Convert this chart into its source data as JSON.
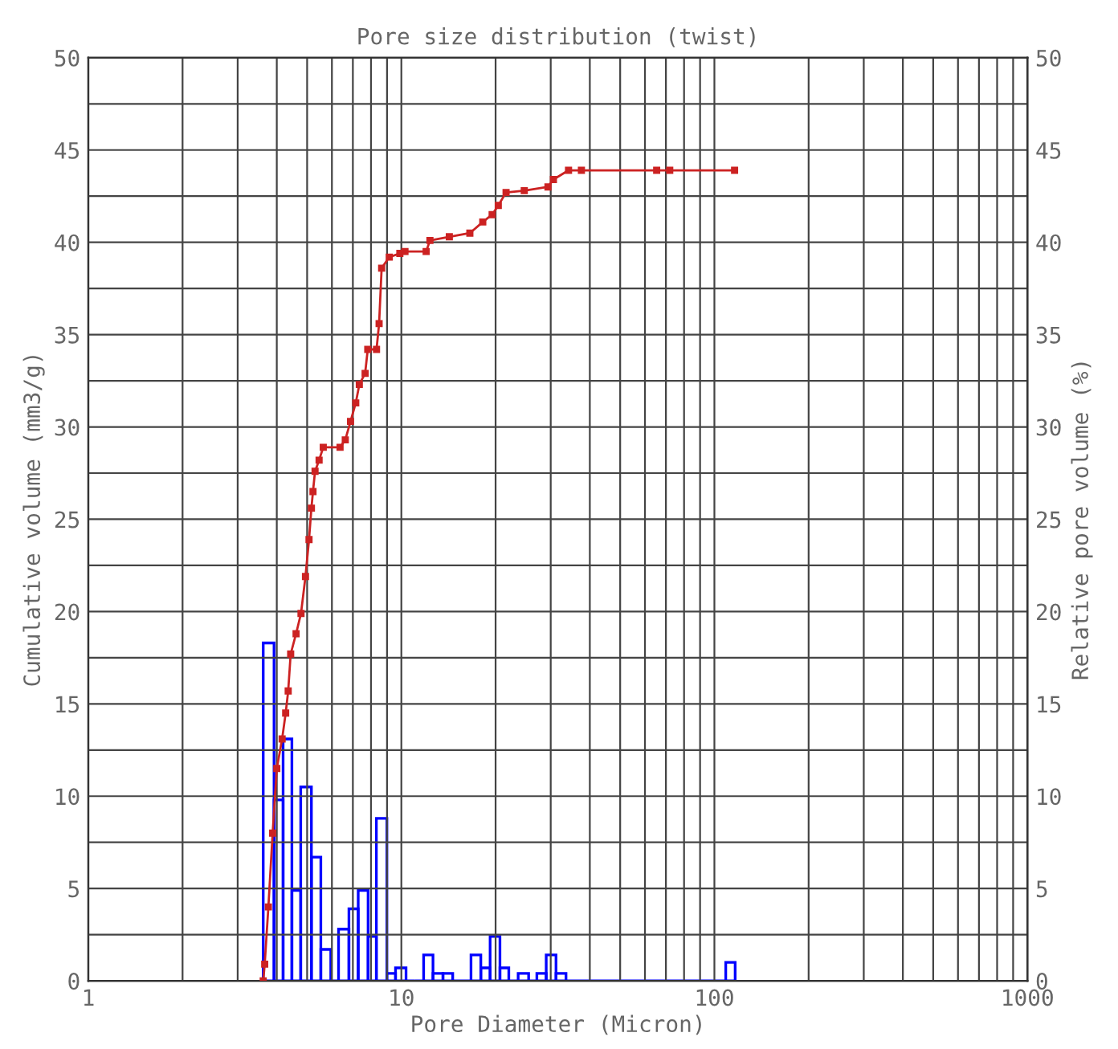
{
  "chart_data": {
    "type": "line",
    "title": "Pore size distribution (twist)",
    "xlabel": "Pore Diameter (Micron)",
    "ylabel": "Cumulative volume (mm3/g)",
    "y2label": "Relative pore volume (%)",
    "log": "x",
    "xlim": [
      1,
      1000
    ],
    "xticks": [
      1,
      10,
      100,
      1000
    ],
    "ylim": [
      0,
      50
    ],
    "yticks": [
      0,
      5,
      10,
      15,
      20,
      25,
      30,
      35,
      40,
      45,
      50
    ],
    "y2lim": [
      0,
      50
    ],
    "y2ticks": [
      0,
      5,
      10,
      15,
      20,
      25,
      30,
      35,
      40,
      45,
      50
    ],
    "grid": true,
    "marker": "square",
    "line_style": "solid",
    "series": [
      {
        "color": "#cc2222",
        "x": [
          3.62,
          3.66,
          3.76,
          3.88,
          4.0,
          4.16,
          4.27,
          4.35,
          4.43,
          4.61,
          4.78,
          4.94,
          5.07,
          5.16,
          5.22,
          5.3,
          5.46,
          5.63,
          6.37,
          6.62,
          6.88,
          7.15,
          7.34,
          7.66,
          7.81,
          8.33,
          8.49,
          8.65,
          9.15,
          9.89,
          10.27,
          12.0,
          12.34,
          14.23,
          16.55,
          18.2,
          19.5,
          20.4,
          21.6,
          24.7,
          29.4,
          30.6,
          34.2,
          37.6,
          65.4,
          72.0,
          116.0
        ],
        "values": [
          0,
          0.9,
          4.0,
          8.0,
          11.5,
          13.1,
          14.5,
          15.7,
          17.7,
          18.8,
          19.9,
          21.9,
          23.9,
          25.6,
          26.5,
          27.6,
          28.2,
          28.9,
          28.9,
          29.3,
          30.3,
          31.3,
          32.3,
          32.9,
          34.2,
          34.2,
          35.6,
          38.6,
          39.2,
          39.4,
          39.5,
          39.5,
          40.1,
          40.3,
          40.5,
          41.1,
          41.5,
          42.0,
          42.7,
          42.8,
          43.0,
          43.4,
          43.9,
          43.9,
          43.9,
          43.9,
          43.9
        ]
      },
      {
        "type": "histogram",
        "axis": "y2",
        "color": "#0000ff",
        "bins": [
          3.62,
          3.92,
          4.19,
          4.47,
          4.77,
          5.16,
          5.53,
          5.95,
          6.3,
          6.8,
          7.28,
          7.83,
          8.32,
          8.99,
          9.58,
          10.35,
          11.05,
          11.78,
          12.62,
          13.58,
          14.59,
          15.6,
          16.69,
          17.94,
          19.21,
          20.65,
          22.04,
          23.61,
          25.5,
          27.09,
          29.02,
          31.19,
          33.57,
          108.7,
          116.5
        ],
        "values": [
          18.3,
          9.8,
          13.1,
          4.9,
          10.5,
          6.7,
          1.7,
          0,
          2.8,
          3.9,
          4.9,
          2.4,
          8.8,
          0.4,
          0.7,
          0,
          0,
          1.4,
          0.4,
          0.4,
          0,
          0,
          1.4,
          0.7,
          2.4,
          0.7,
          0,
          0.4,
          0,
          0.4,
          1.4,
          0.4,
          0,
          1.0
        ]
      }
    ]
  }
}
